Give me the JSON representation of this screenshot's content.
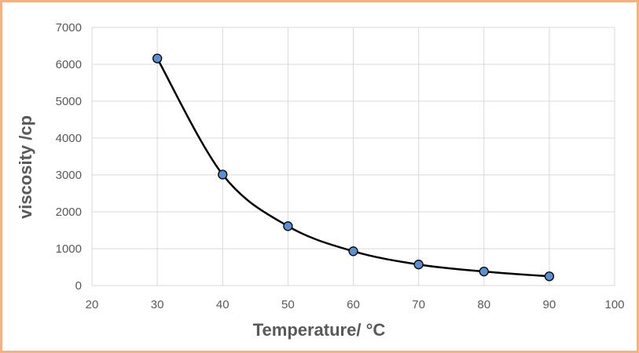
{
  "chart_data": {
    "type": "scatter",
    "title": "",
    "xlabel": "Temperature/ °C",
    "ylabel": "viscosity /cp",
    "xlim": [
      20,
      100
    ],
    "ylim": [
      0,
      7000
    ],
    "xticks": [
      20,
      30,
      40,
      50,
      60,
      70,
      80,
      90,
      100
    ],
    "yticks": [
      0,
      1000,
      2000,
      3000,
      4000,
      5000,
      6000,
      7000
    ],
    "grid": true,
    "legend": "none",
    "line": "smooth",
    "series": [
      {
        "x": [
          30,
          40,
          50,
          60,
          70,
          80,
          90
        ],
        "y": [
          6160,
          3010,
          1610,
          930,
          570,
          380,
          250
        ],
        "marker_color": "#5b8fd0",
        "line_color": "#000000"
      }
    ]
  },
  "colors": {
    "border": "#f4b183",
    "grid": "#d9d9d9",
    "text": "#595959"
  }
}
